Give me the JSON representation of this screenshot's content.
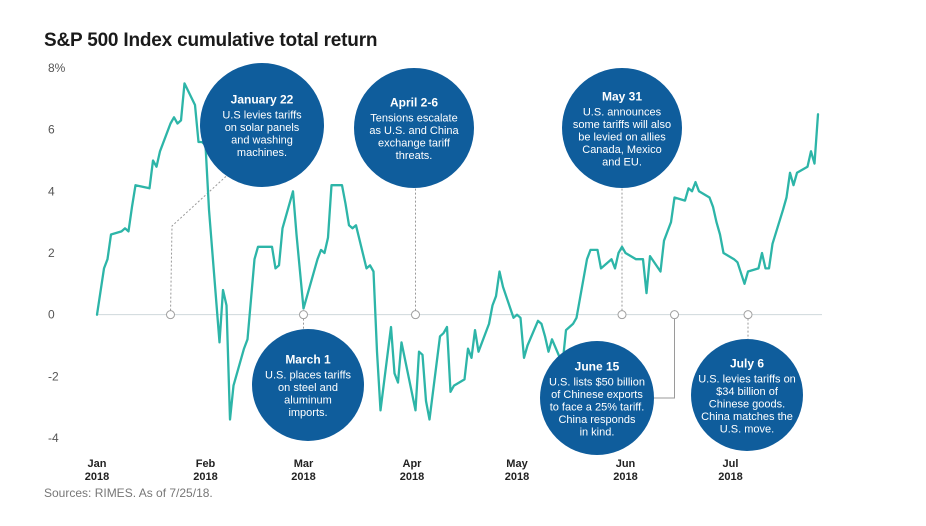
{
  "title": "S&P 500 Index cumulative total return",
  "source": "Sources: RIMES. As of 7/25/18.",
  "colors": {
    "line": "#2db5a8",
    "bubble": "#0f5d9c",
    "leader": "#9a9a9a",
    "zero_line": "#cfd8dc"
  },
  "chart_data": {
    "type": "line",
    "title": "S&P 500 Index cumulative total return",
    "xlabel": "",
    "ylabel": "",
    "ylim": [
      -4,
      8
    ],
    "y_ticks": [
      {
        "value": 8,
        "label": "8%"
      },
      {
        "value": 6,
        "label": "6"
      },
      {
        "value": 4,
        "label": "4"
      },
      {
        "value": 2,
        "label": "2"
      },
      {
        "value": 0,
        "label": "0"
      },
      {
        "value": -2,
        "label": "-2"
      },
      {
        "value": -4,
        "label": "-4"
      }
    ],
    "xlim": [
      "2018-01-01",
      "2018-07-26"
    ],
    "x_ticks": [
      {
        "date": "2018-01-01",
        "month": "Jan",
        "year": "2018"
      },
      {
        "date": "2018-02-01",
        "month": "Feb",
        "year": "2018"
      },
      {
        "date": "2018-03-01",
        "month": "Mar",
        "year": "2018"
      },
      {
        "date": "2018-04-01",
        "month": "Apr",
        "year": "2018"
      },
      {
        "date": "2018-05-01",
        "month": "May",
        "year": "2018"
      },
      {
        "date": "2018-06-01",
        "month": "Jun",
        "year": "2018"
      },
      {
        "date": "2018-07-01",
        "month": "Jul",
        "year": "2018"
      }
    ],
    "grid": false,
    "series": [
      {
        "name": "",
        "points": [
          [
            "2018-01-01",
            0.0
          ],
          [
            "2018-01-03",
            1.5
          ],
          [
            "2018-01-04",
            1.8
          ],
          [
            "2018-01-05",
            2.6
          ],
          [
            "2018-01-08",
            2.7
          ],
          [
            "2018-01-09",
            2.8
          ],
          [
            "2018-01-10",
            2.7
          ],
          [
            "2018-01-11",
            3.5
          ],
          [
            "2018-01-12",
            4.2
          ],
          [
            "2018-01-16",
            4.1
          ],
          [
            "2018-01-17",
            5.0
          ],
          [
            "2018-01-18",
            4.8
          ],
          [
            "2018-01-19",
            5.3
          ],
          [
            "2018-01-22",
            6.2
          ],
          [
            "2018-01-23",
            6.4
          ],
          [
            "2018-01-24",
            6.2
          ],
          [
            "2018-01-25",
            6.3
          ],
          [
            "2018-01-26",
            7.5
          ],
          [
            "2018-01-29",
            6.8
          ],
          [
            "2018-01-30",
            5.6
          ],
          [
            "2018-01-31",
            5.6
          ],
          [
            "2018-02-01",
            5.5
          ],
          [
            "2018-02-02",
            3.4
          ],
          [
            "2018-02-05",
            -0.9
          ],
          [
            "2018-02-06",
            0.8
          ],
          [
            "2018-02-07",
            0.3
          ],
          [
            "2018-02-08",
            -3.4
          ],
          [
            "2018-02-09",
            -2.3
          ],
          [
            "2018-02-12",
            -1.1
          ],
          [
            "2018-02-13",
            -0.8
          ],
          [
            "2018-02-14",
            0.5
          ],
          [
            "2018-02-15",
            1.8
          ],
          [
            "2018-02-16",
            2.2
          ],
          [
            "2018-02-20",
            2.2
          ],
          [
            "2018-02-21",
            1.5
          ],
          [
            "2018-02-22",
            1.6
          ],
          [
            "2018-02-23",
            2.8
          ],
          [
            "2018-02-26",
            4.0
          ],
          [
            "2018-02-27",
            2.6
          ],
          [
            "2018-02-28",
            1.4
          ],
          [
            "2018-03-01",
            0.2
          ],
          [
            "2018-03-02",
            0.6
          ],
          [
            "2018-03-05",
            1.8
          ],
          [
            "2018-03-06",
            2.1
          ],
          [
            "2018-03-07",
            2.0
          ],
          [
            "2018-03-08",
            2.5
          ],
          [
            "2018-03-09",
            4.2
          ],
          [
            "2018-03-12",
            4.2
          ],
          [
            "2018-03-13",
            3.6
          ],
          [
            "2018-03-14",
            2.9
          ],
          [
            "2018-03-15",
            2.8
          ],
          [
            "2018-03-16",
            2.9
          ],
          [
            "2018-03-19",
            1.5
          ],
          [
            "2018-03-20",
            1.6
          ],
          [
            "2018-03-21",
            1.4
          ],
          [
            "2018-03-22",
            -1.2
          ],
          [
            "2018-03-23",
            -3.1
          ],
          [
            "2018-03-26",
            -0.4
          ],
          [
            "2018-03-27",
            -1.9
          ],
          [
            "2018-03-28",
            -2.2
          ],
          [
            "2018-03-29",
            -0.9
          ],
          [
            "2018-04-02",
            -3.1
          ],
          [
            "2018-04-03",
            -1.2
          ],
          [
            "2018-04-04",
            -1.3
          ],
          [
            "2018-04-05",
            -2.8
          ],
          [
            "2018-04-06",
            -3.4
          ],
          [
            "2018-04-09",
            -0.7
          ],
          [
            "2018-04-10",
            -0.6
          ],
          [
            "2018-04-11",
            -0.4
          ],
          [
            "2018-04-12",
            -2.5
          ],
          [
            "2018-04-13",
            -2.3
          ],
          [
            "2018-04-16",
            -2.1
          ],
          [
            "2018-04-17",
            -1.1
          ],
          [
            "2018-04-18",
            -1.4
          ],
          [
            "2018-04-19",
            -0.5
          ],
          [
            "2018-04-20",
            -1.2
          ],
          [
            "2018-04-23",
            -0.3
          ],
          [
            "2018-04-24",
            0.3
          ],
          [
            "2018-04-25",
            0.6
          ],
          [
            "2018-04-26",
            1.4
          ],
          [
            "2018-04-27",
            0.9
          ],
          [
            "2018-04-30",
            -0.1
          ],
          [
            "2018-05-01",
            0.0
          ],
          [
            "2018-05-02",
            -0.1
          ],
          [
            "2018-05-03",
            -1.4
          ],
          [
            "2018-05-04",
            -1.0
          ],
          [
            "2018-05-07",
            -0.2
          ],
          [
            "2018-05-08",
            -0.3
          ],
          [
            "2018-05-09",
            -0.7
          ],
          [
            "2018-05-10",
            -1.2
          ],
          [
            "2018-05-11",
            -0.8
          ],
          [
            "2018-05-14",
            -1.6
          ],
          [
            "2018-05-15",
            -0.5
          ],
          [
            "2018-05-16",
            -0.4
          ],
          [
            "2018-05-17",
            -0.3
          ],
          [
            "2018-05-18",
            -0.1
          ],
          [
            "2018-05-21",
            1.8
          ],
          [
            "2018-05-22",
            2.1
          ],
          [
            "2018-05-23",
            2.1
          ],
          [
            "2018-05-24",
            2.1
          ],
          [
            "2018-05-25",
            1.5
          ],
          [
            "2018-05-28",
            1.8
          ],
          [
            "2018-05-29",
            1.5
          ],
          [
            "2018-05-30",
            2.0
          ],
          [
            "2018-05-31",
            2.2
          ],
          [
            "2018-06-01",
            2.0
          ],
          [
            "2018-06-04",
            1.8
          ],
          [
            "2018-06-05",
            1.8
          ],
          [
            "2018-06-06",
            1.8
          ],
          [
            "2018-06-07",
            0.7
          ],
          [
            "2018-06-08",
            1.9
          ],
          [
            "2018-06-11",
            1.4
          ],
          [
            "2018-06-12",
            2.4
          ],
          [
            "2018-06-13",
            2.7
          ],
          [
            "2018-06-14",
            3.0
          ],
          [
            "2018-06-15",
            3.8
          ],
          [
            "2018-06-18",
            3.7
          ],
          [
            "2018-06-19",
            4.1
          ],
          [
            "2018-06-20",
            4.0
          ],
          [
            "2018-06-21",
            4.3
          ],
          [
            "2018-06-22",
            4.0
          ],
          [
            "2018-06-25",
            3.8
          ],
          [
            "2018-06-26",
            3.5
          ],
          [
            "2018-06-27",
            3.0
          ],
          [
            "2018-06-28",
            2.6
          ],
          [
            "2018-06-29",
            2.0
          ],
          [
            "2018-07-02",
            1.8
          ],
          [
            "2018-07-03",
            1.7
          ],
          [
            "2018-07-05",
            1.0
          ],
          [
            "2018-07-06",
            1.4
          ],
          [
            "2018-07-09",
            1.5
          ],
          [
            "2018-07-10",
            2.0
          ],
          [
            "2018-07-11",
            1.5
          ],
          [
            "2018-07-12",
            1.5
          ],
          [
            "2018-07-13",
            2.3
          ],
          [
            "2018-07-16",
            3.4
          ],
          [
            "2018-07-17",
            3.8
          ],
          [
            "2018-07-18",
            4.6
          ],
          [
            "2018-07-19",
            4.2
          ],
          [
            "2018-07-20",
            4.6
          ],
          [
            "2018-07-23",
            4.8
          ],
          [
            "2018-07-24",
            5.3
          ],
          [
            "2018-07-25",
            4.9
          ],
          [
            "2018-07-26",
            6.5
          ]
        ]
      }
    ],
    "annotations": [
      {
        "date": "2018-01-22",
        "anchor": "above",
        "title": "January 22",
        "lines": [
          "U.S levies tariffs",
          "on solar panels",
          "and washing",
          "machines."
        ]
      },
      {
        "date": "2018-03-01",
        "anchor": "below",
        "title": "March 1",
        "lines": [
          "U.S. places tariffs",
          "on steel and",
          "aluminum",
          "imports."
        ]
      },
      {
        "date": "2018-04-02",
        "anchor": "above",
        "title": "April 2-6",
        "lines": [
          "Tensions escalate",
          "as U.S. and China",
          "exchange tariff",
          "threats."
        ]
      },
      {
        "date": "2018-05-31",
        "anchor": "above",
        "title": "May 31",
        "lines": [
          "U.S. announces",
          "some tariffs will also",
          "be levied on allies",
          "Canada, Mexico",
          "and EU."
        ]
      },
      {
        "date": "2018-06-15",
        "anchor": "below",
        "title": "June 15",
        "lines": [
          "U.S. lists $50 billion",
          "of Chinese exports",
          "to face a 25% tariff.",
          "China responds",
          "in kind."
        ]
      },
      {
        "date": "2018-07-06",
        "anchor": "below",
        "title": "July 6",
        "lines": [
          "U.S. levies tariffs on",
          "$34 billion of",
          "Chinese goods.",
          "China matches the",
          "U.S. move."
        ]
      }
    ]
  }
}
